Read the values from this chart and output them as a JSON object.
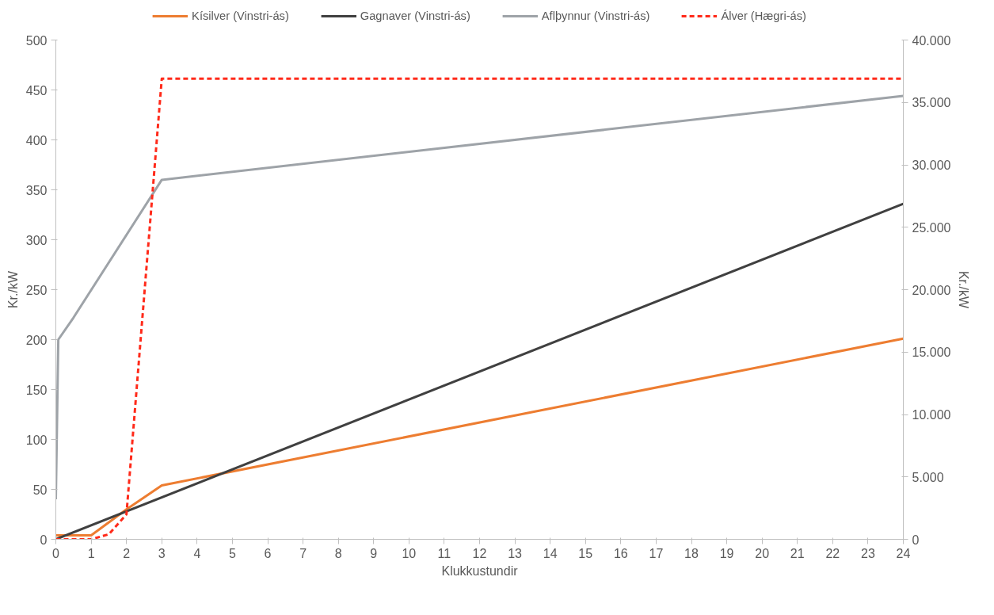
{
  "chart_data": {
    "type": "line",
    "xlabel": "Klukkustundir",
    "ylabel": "Kr./kW",
    "y2label": "Kr./kW",
    "xlim": [
      0,
      24
    ],
    "xticks": [
      0,
      1,
      2,
      3,
      4,
      5,
      6,
      7,
      8,
      9,
      10,
      11,
      12,
      13,
      14,
      15,
      16,
      17,
      18,
      19,
      20,
      21,
      22,
      23,
      24
    ],
    "ylim": [
      0,
      500
    ],
    "yticks": [
      0,
      50,
      100,
      150,
      200,
      250,
      300,
      350,
      400,
      450,
      500
    ],
    "y2lim": [
      0,
      40000
    ],
    "y2ticks": [
      {
        "value": 0,
        "label": "0"
      },
      {
        "value": 5000,
        "label": "5.000"
      },
      {
        "value": 10000,
        "label": "10.000"
      },
      {
        "value": 15000,
        "label": "15.000"
      },
      {
        "value": 20000,
        "label": "20.000"
      },
      {
        "value": 25000,
        "label": "25.000"
      },
      {
        "value": 30000,
        "label": "30.000"
      },
      {
        "value": 35000,
        "label": "35.000"
      },
      {
        "value": 40000,
        "label": "40.000"
      }
    ],
    "grid": false,
    "legend": "top",
    "marker": "none",
    "series": [
      {
        "name": "Kísilver (Vinstri-ás)",
        "color": "#ed7d31",
        "x": [
          0,
          1,
          2,
          3,
          24
        ],
        "values": [
          4,
          4,
          30,
          54,
          201
        ]
      },
      {
        "name": "Gagnaver (Vinstri-ás)",
        "color": "#404040",
        "x": [
          0,
          24
        ],
        "values": [
          0,
          336
        ]
      },
      {
        "name": "Aflþynnur (Vinstri-ás)",
        "color": "#9ea3a8",
        "x": [
          0,
          0.07,
          0.5,
          3,
          24
        ],
        "values": [
          40,
          200,
          222,
          360,
          444
        ]
      },
      {
        "name": "Álver (Hægri-ás)",
        "color": "#ff2a1a",
        "axis": "y2",
        "line_style": "dashed",
        "x": [
          0,
          1,
          1.5,
          2,
          3,
          24
        ],
        "values": [
          0,
          0,
          400,
          2000,
          36900,
          36900
        ]
      }
    ]
  }
}
